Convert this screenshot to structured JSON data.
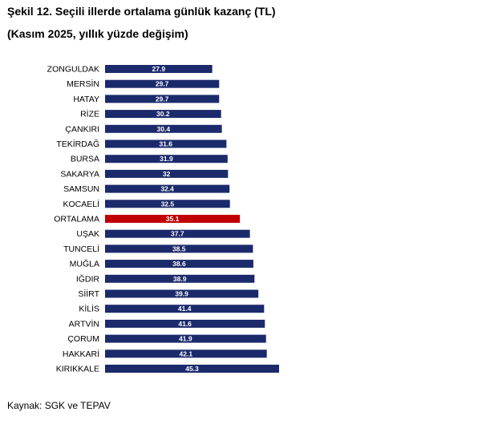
{
  "header": {
    "title": "Şekil 12. Seçili illerde ortalama günlük kazanç (TL)",
    "subtitle": "(Kasım 2025, yıllık yüzde değişim)"
  },
  "footer": {
    "source": "Kaynak: SGK ve TEPAV"
  },
  "colors": {
    "bar": "#1b2a6b",
    "highlight": "#c00000"
  },
  "chart_data": {
    "type": "bar",
    "orientation": "horizontal",
    "title": "Şekil 12. Seçili illerde ortalama günlük kazanç (TL)",
    "subtitle": "(Kasım 2025, yıllık yüzde değişim)",
    "categories": [
      "ZONGULDAK",
      "MERSİN",
      "HATAY",
      "RİZE",
      "ÇANKIRI",
      "TEKİRDAĞ",
      "BURSA",
      "SAKARYA",
      "SAMSUN",
      "KOCAELİ",
      "ORTALAMA",
      "UŞAK",
      "TUNCELİ",
      "MUĞLA",
      "IĞDIR",
      "SİİRT",
      "KİLİS",
      "ARTVİN",
      "ÇORUM",
      "HAKKARİ",
      "KIRIKKALE"
    ],
    "values": [
      27.9,
      29.7,
      29.7,
      30.2,
      30.4,
      31.6,
      31.9,
      32,
      32.4,
      32.5,
      35.1,
      37.7,
      38.5,
      38.6,
      38.9,
      39.9,
      41.4,
      41.6,
      41.9,
      42.1,
      45.3
    ],
    "highlight_category": "ORTALAMA",
    "data_labels": true,
    "grid": false,
    "legend": "none",
    "xlabel": "",
    "ylabel": ""
  }
}
